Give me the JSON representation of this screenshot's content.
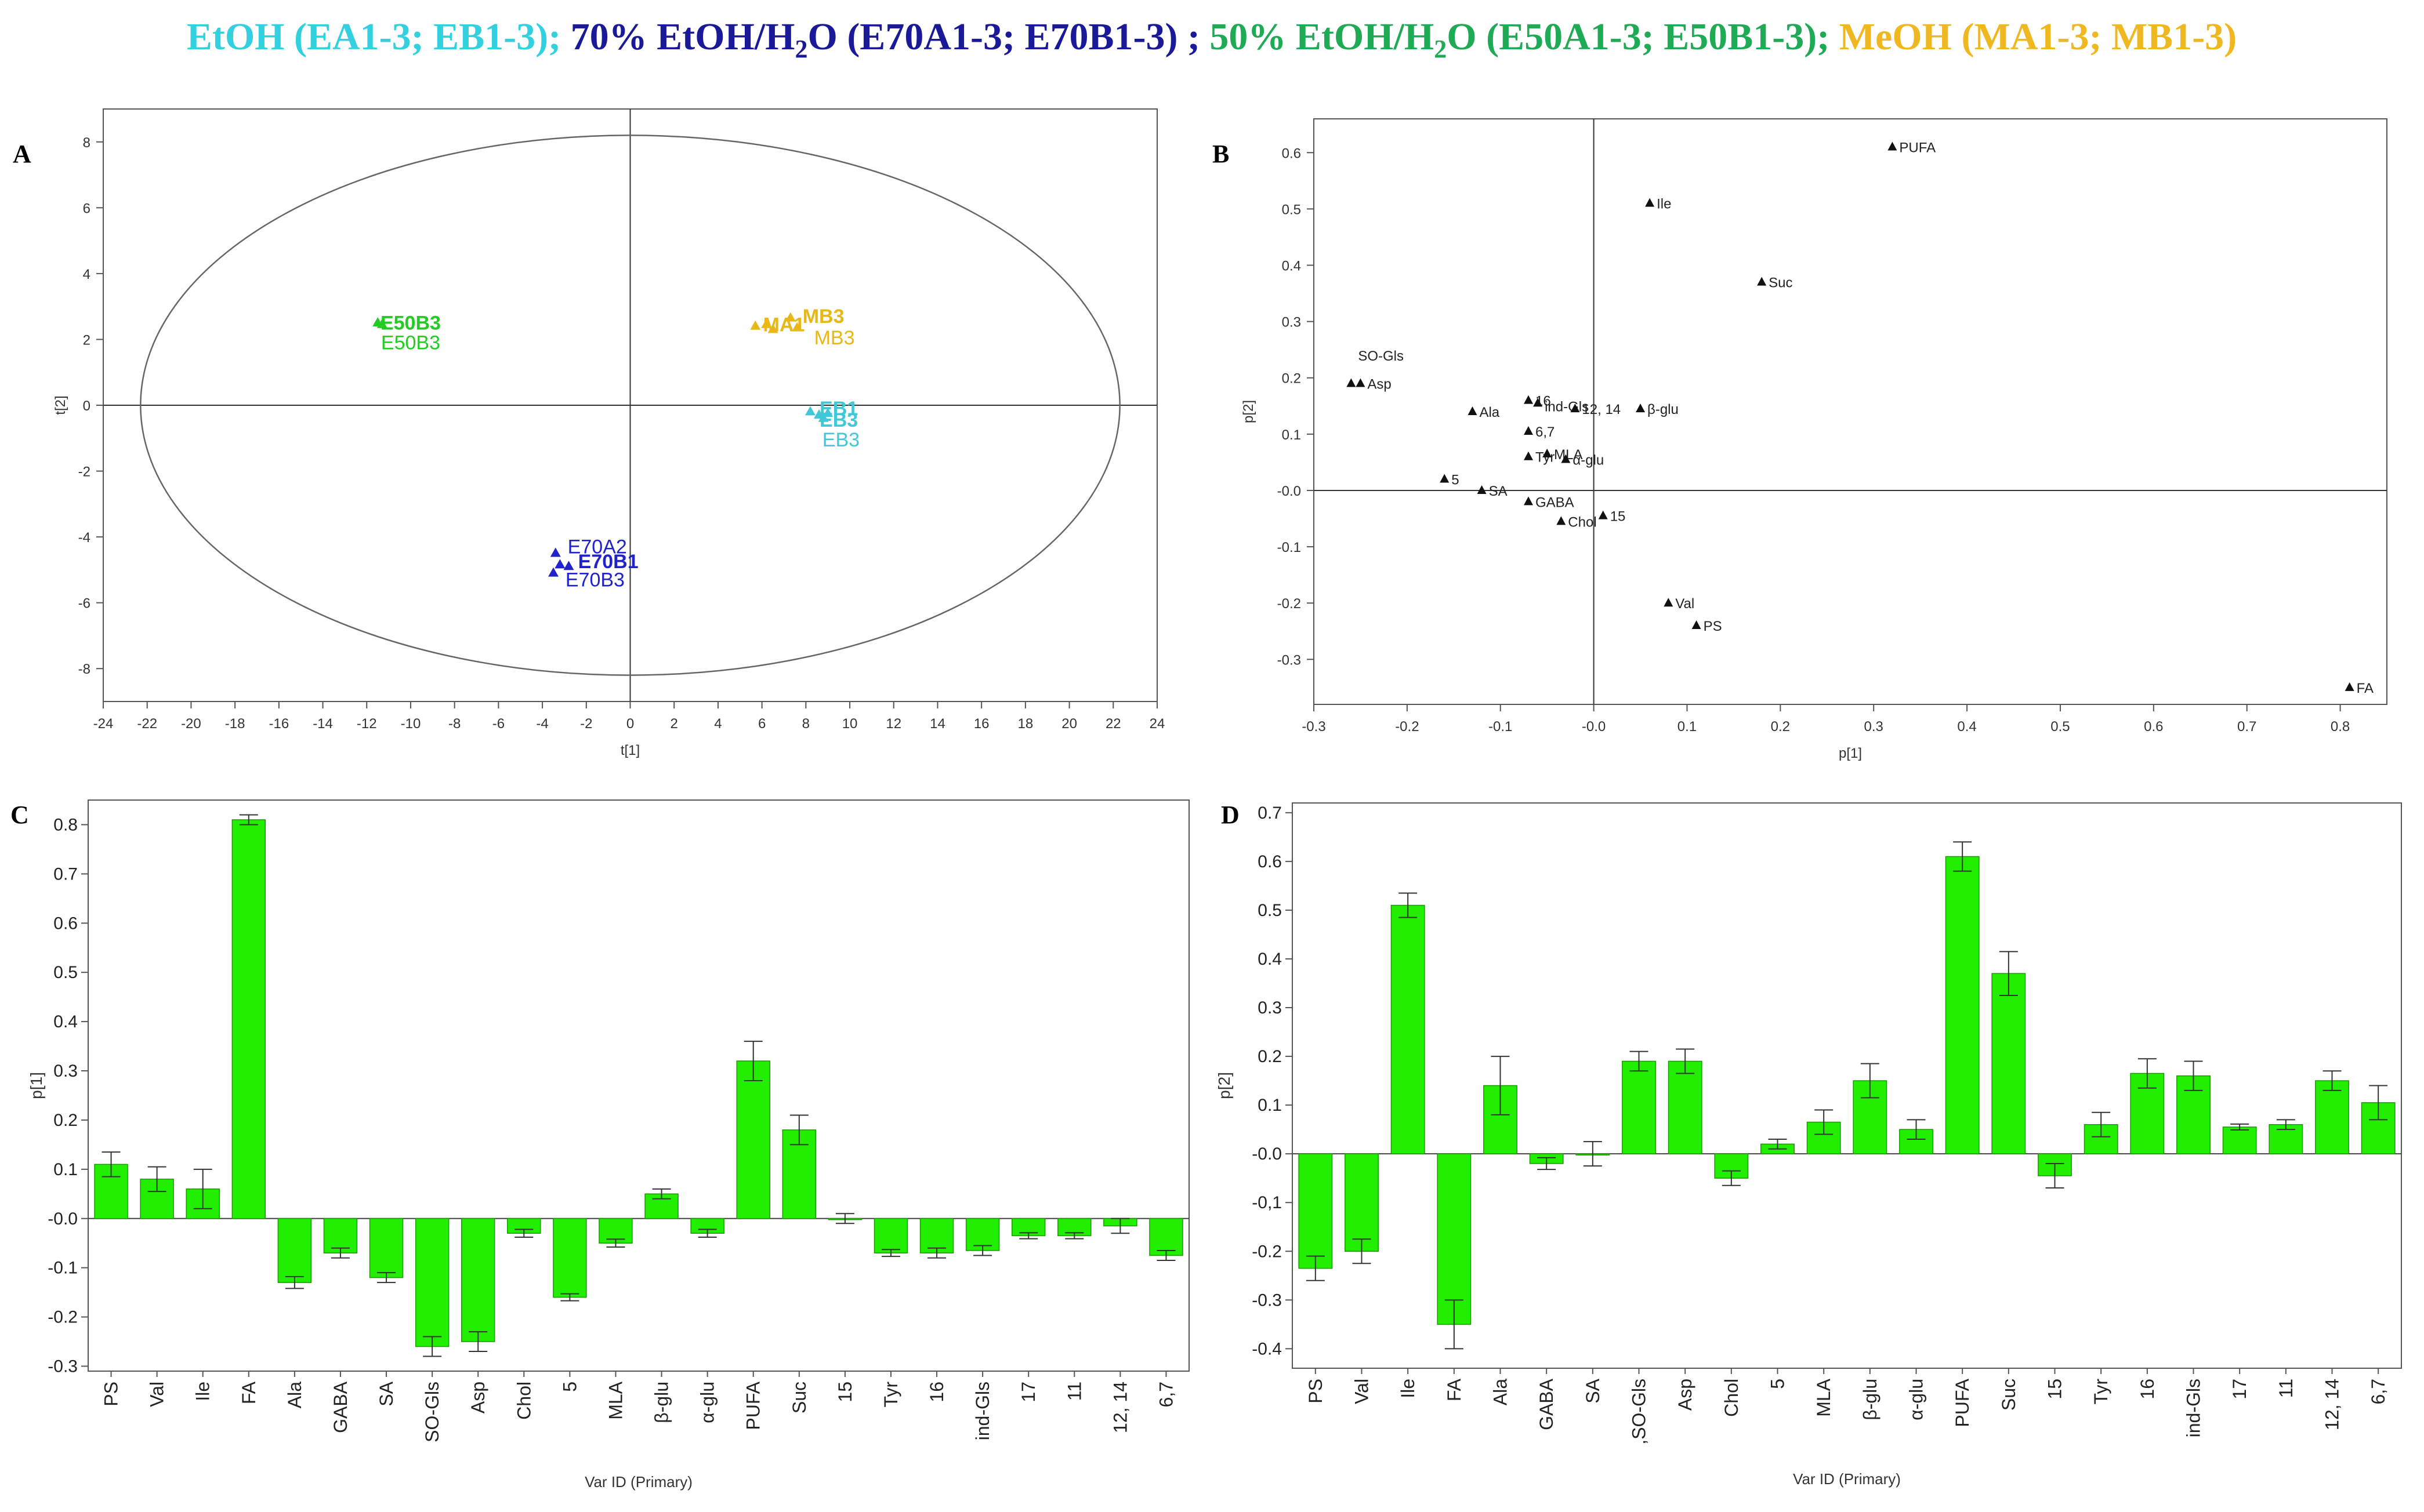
{
  "header": {
    "segments": [
      {
        "text": "EtOH (EA1-3; EB1-3); ",
        "color": "#33d1e0"
      },
      {
        "text": "70% EtOH/H",
        "color": "#1a1a99"
      },
      {
        "text": "2",
        "color": "#1a1a99",
        "sub": true
      },
      {
        "text": "O (E70A1-3; E70B1-3) ; ",
        "color": "#1a1a99"
      },
      {
        "text": "50% EtOH/H",
        "color": "#1faa55"
      },
      {
        "text": "2",
        "color": "#1faa55",
        "sub": true
      },
      {
        "text": "O (E50A1-3; E50B1-3); ",
        "color": "#1faa55"
      },
      {
        "text": "MeOH (MA1-3; MB1-3)",
        "color": "#f0b820"
      }
    ]
  },
  "chart_data": [
    {
      "panel": "A",
      "type": "scatter",
      "title": "",
      "xlabel": "t[1]",
      "ylabel": "t[2]",
      "xlim": [
        -24,
        24
      ],
      "ylim": [
        -9,
        9
      ],
      "xticks": [
        -24,
        -22,
        -20,
        -18,
        -16,
        -14,
        -12,
        -10,
        -8,
        -6,
        -4,
        -2,
        0,
        2,
        4,
        6,
        8,
        10,
        12,
        14,
        16,
        18,
        20,
        22,
        24
      ],
      "yticks": [
        -8,
        -6,
        -4,
        -2,
        0,
        2,
        4,
        6,
        8
      ],
      "ellipse": {
        "center": [
          0,
          0
        ],
        "rx": 22.3,
        "ry": 8.2
      },
      "groups": [
        {
          "name": "E50",
          "color": "#22cc22",
          "points": [
            [
              -11.5,
              2.5
            ],
            [
              -11.3,
              2.45
            ]
          ],
          "labels": [
            {
              "text": "E50B3",
              "x": -10,
              "y": 2.3,
              "bold": true
            },
            {
              "text": "E50B3",
              "x": -10,
              "y": 1.7,
              "bold": false
            }
          ]
        },
        {
          "name": "M",
          "color": "#e8b818",
          "points": [
            [
              5.7,
              2.4
            ],
            [
              6.2,
              2.45
            ],
            [
              7.3,
              2.65
            ],
            [
              7.6,
              2.35
            ],
            [
              6.5,
              2.3
            ]
          ],
          "labels": [
            {
              "text": "MB3",
              "x": 8.8,
              "y": 2.5,
              "bold": true
            },
            {
              "text": "MA1",
              "x": 7.0,
              "y": 2.25,
              "bold": true
            },
            {
              "text": "MB3",
              "x": 9.3,
              "y": 1.85,
              "bold": false
            }
          ]
        },
        {
          "name": "E",
          "color": "#40c8d8",
          "points": [
            [
              8.2,
              -0.2
            ],
            [
              8.6,
              -0.3
            ],
            [
              9.0,
              -0.25
            ],
            [
              8.8,
              -0.4
            ]
          ],
          "labels": [
            {
              "text": "EB1",
              "x": 9.5,
              "y": -0.3,
              "bold": true
            },
            {
              "text": "EB3",
              "x": 9.5,
              "y": -0.65,
              "bold": true
            },
            {
              "text": "EB3",
              "x": 9.6,
              "y": -1.25,
              "bold": false
            }
          ]
        },
        {
          "name": "E70",
          "color": "#2222cc",
          "points": [
            [
              -3.4,
              -4.5
            ],
            [
              -3.2,
              -4.85
            ],
            [
              -2.8,
              -4.9
            ],
            [
              -3.5,
              -5.1
            ]
          ],
          "labels": [
            {
              "text": "E70A2",
              "x": -1.5,
              "y": -4.5,
              "bold": false
            },
            {
              "text": "E70B1",
              "x": -1.0,
              "y": -4.95,
              "bold": true
            },
            {
              "text": "E70B3",
              "x": -1.6,
              "y": -5.5,
              "bold": false
            }
          ]
        }
      ]
    },
    {
      "panel": "B",
      "type": "scatter",
      "title": "",
      "xlabel": "p[1]",
      "ylabel": "p[2]",
      "xlim": [
        -0.3,
        0.85
      ],
      "ylim": [
        -0.38,
        0.66
      ],
      "xticks": [
        -0.3,
        -0.2,
        -0.1,
        0,
        0.1,
        0.2,
        0.3,
        0.4,
        0.5,
        0.6,
        0.7,
        0.8
      ],
      "xtick_labels": [
        "-0.3",
        "-0.2",
        "-0.1",
        "-0.0",
        "0.1",
        "0.2",
        "0.3",
        "0.4",
        "0.5",
        "0.6",
        "0.7",
        "0.8"
      ],
      "yticks": [
        -0.3,
        -0.2,
        -0.1,
        0,
        0.1,
        0.2,
        0.3,
        0.4,
        0.5,
        0.6
      ],
      "ytick_labels": [
        "-0.3",
        "-0.2",
        "-0.1",
        "-0.0",
        "0.1",
        "0.2",
        "0.3",
        "0.4",
        "0.5",
        "0.6"
      ],
      "points": [
        {
          "label": "PUFA",
          "x": 0.32,
          "y": 0.61
        },
        {
          "label": "Ile",
          "x": 0.06,
          "y": 0.51
        },
        {
          "label": "Suc",
          "x": 0.18,
          "y": 0.37
        },
        {
          "label": "Asp",
          "x": -0.25,
          "y": 0.19
        },
        {
          "label": "SO-Gls",
          "x": -0.26,
          "y": 0.19,
          "label_dx": 0,
          "label_dy": 0.05
        },
        {
          "label": "Ala",
          "x": -0.13,
          "y": 0.14
        },
        {
          "label": "16",
          "x": -0.07,
          "y": 0.16
        },
        {
          "label": "ind-Gls",
          "x": -0.06,
          "y": 0.155,
          "label_dy": -0.005
        },
        {
          "label": "12, 14",
          "x": -0.02,
          "y": 0.145
        },
        {
          "label": "β-glu",
          "x": 0.05,
          "y": 0.145
        },
        {
          "label": "6,7",
          "x": -0.07,
          "y": 0.105
        },
        {
          "label": "Tyr",
          "x": -0.07,
          "y": 0.06
        },
        {
          "label": "MLA",
          "x": -0.05,
          "y": 0.065
        },
        {
          "label": "α-glu",
          "x": -0.03,
          "y": 0.055
        },
        {
          "label": "5",
          "x": -0.16,
          "y": 0.02
        },
        {
          "label": "SA",
          "x": -0.12,
          "y": 0.0
        },
        {
          "label": "GABA",
          "x": -0.07,
          "y": -0.02
        },
        {
          "label": "Chol",
          "x": -0.035,
          "y": -0.055
        },
        {
          "label": "15",
          "x": 0.01,
          "y": -0.045
        },
        {
          "label": "Val",
          "x": 0.08,
          "y": -0.2
        },
        {
          "label": "PS",
          "x": 0.11,
          "y": -0.24
        },
        {
          "label": "FA",
          "x": 0.81,
          "y": -0.35
        }
      ]
    },
    {
      "panel": "C",
      "type": "bar",
      "title": "",
      "xlabel": "Var ID (Primary)",
      "ylabel": "p[1]",
      "ylim": [
        -0.31,
        0.85
      ],
      "yticks": [
        -0.3,
        -0.2,
        -0.1,
        0,
        0.1,
        0.2,
        0.3,
        0.4,
        0.5,
        0.6,
        0.7,
        0.8
      ],
      "ytick_labels": [
        "-0.3",
        "-0.2",
        "-0.1",
        "-0.0",
        "0.1",
        "0.2",
        "0.3",
        "0.4",
        "0.5",
        "0.6",
        "0.7",
        "0.8"
      ],
      "categories": [
        "PS",
        "Val",
        "Ile",
        "FA",
        "Ala",
        "GABA",
        "SA",
        "SO-Gls",
        "Asp",
        "Chol",
        "5",
        "MLA",
        "β-glu",
        "α-glu",
        "PUFA",
        "Suc",
        "15",
        "Tyr",
        "16",
        "ind-Gls",
        "17",
        "11",
        "12, 14",
        "6,7"
      ],
      "values": [
        0.11,
        0.08,
        0.06,
        0.81,
        -0.13,
        -0.07,
        -0.12,
        -0.26,
        -0.25,
        -0.03,
        -0.16,
        -0.05,
        0.05,
        -0.03,
        0.32,
        0.18,
        0.0,
        -0.07,
        -0.07,
        -0.065,
        -0.035,
        -0.035,
        -0.015,
        -0.075
      ],
      "errors": [
        0.025,
        0.025,
        0.04,
        0.01,
        0.012,
        0.01,
        0.01,
        0.02,
        0.02,
        0.008,
        0.007,
        0.008,
        0.01,
        0.008,
        0.04,
        0.03,
        0.01,
        0.007,
        0.01,
        0.01,
        0.006,
        0.006,
        0.015,
        0.01
      ]
    },
    {
      "panel": "D",
      "type": "bar",
      "title": "",
      "xlabel": "Var ID (Primary)",
      "ylabel": "p[2]",
      "ylim": [
        -0.44,
        0.72
      ],
      "yticks": [
        -0.4,
        -0.3,
        -0.2,
        -0.1,
        0,
        0.1,
        0.2,
        0.3,
        0.4,
        0.5,
        0.6,
        0.7
      ],
      "ytick_labels": [
        "-0.4",
        "-0.3",
        "-0.2",
        "-0,1",
        "-0.0",
        "0.1",
        "0.2",
        "0.3",
        "0.4",
        "0.5",
        "0.6",
        "0.7"
      ],
      "categories": [
        "PS",
        "Val",
        "Ile",
        "FA",
        "Ala",
        "GABA",
        "SA",
        ",SO-Gls",
        "Asp",
        "Chol",
        "5",
        "MLA",
        "β-glu",
        "α-glu",
        "PUFA",
        "Suc",
        "15",
        "Tyr",
        "16",
        "ind-Gls",
        "17",
        "11",
        "12, 14",
        "6,7"
      ],
      "values": [
        -0.235,
        -0.2,
        0.51,
        -0.35,
        0.14,
        -0.02,
        0.0,
        0.19,
        0.19,
        -0.05,
        0.02,
        0.065,
        0.15,
        0.05,
        0.61,
        0.37,
        -0.045,
        0.06,
        0.165,
        0.16,
        0.055,
        0.06,
        0.15,
        0.105
      ],
      "errors": [
        0.025,
        0.025,
        0.025,
        0.05,
        0.06,
        0.012,
        0.025,
        0.02,
        0.025,
        0.015,
        0.01,
        0.025,
        0.035,
        0.02,
        0.03,
        0.045,
        0.025,
        0.025,
        0.03,
        0.03,
        0.006,
        0.01,
        0.02,
        0.035
      ]
    }
  ],
  "panel_labels": {
    "a": "A",
    "b": "B",
    "c": "C",
    "d": "D"
  }
}
